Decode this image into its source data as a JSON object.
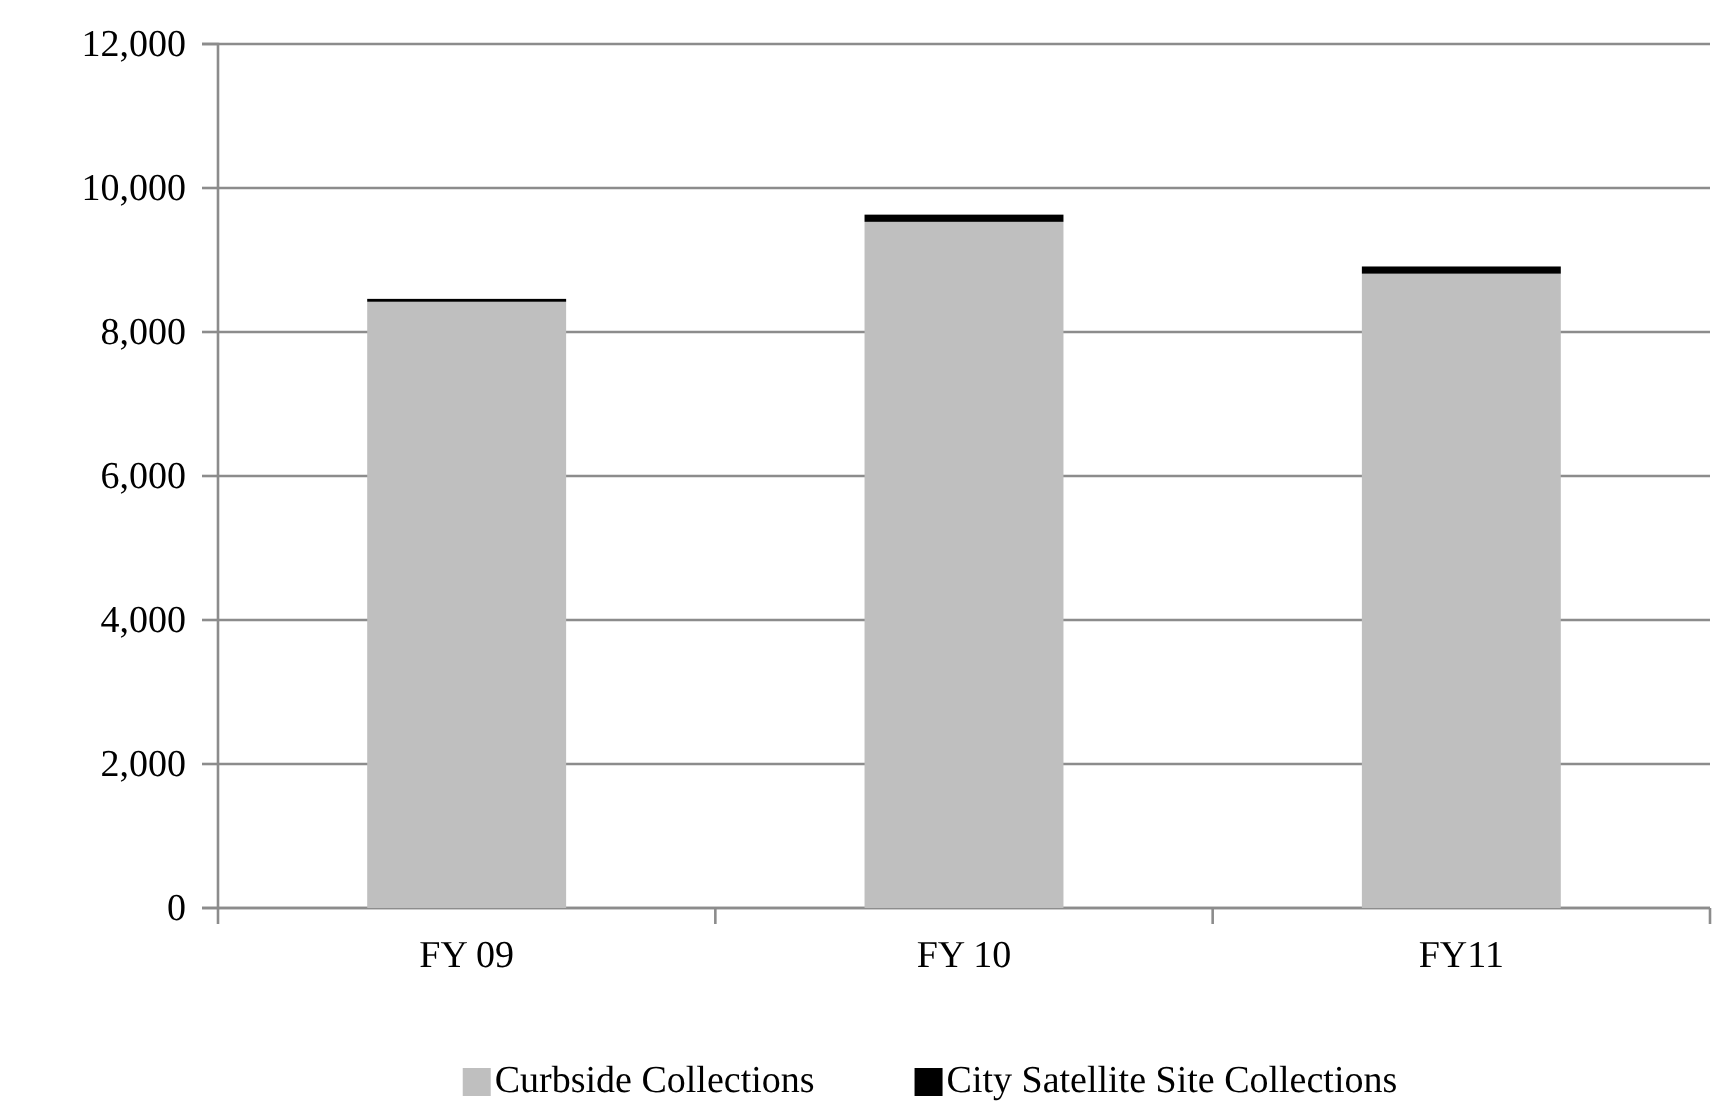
{
  "chart_data": {
    "type": "bar",
    "stacked": true,
    "categories": [
      "FY 09",
      "FY 10",
      "FY11"
    ],
    "series": [
      {
        "name": "Curbside Collections",
        "color": "#bfbfbf",
        "values": [
          8420,
          9530,
          8810
        ]
      },
      {
        "name": "City Satellite Site Collections",
        "color": "#000000",
        "values": [
          40,
          100,
          100
        ]
      }
    ],
    "ylim": [
      0,
      12000
    ],
    "yticks": [
      {
        "value": 0,
        "label": "0"
      },
      {
        "value": 2000,
        "label": "2,000"
      },
      {
        "value": 4000,
        "label": "4,000"
      },
      {
        "value": 6000,
        "label": "6,000"
      },
      {
        "value": 8000,
        "label": "8,000"
      },
      {
        "value": 10000,
        "label": "10,000"
      },
      {
        "value": 12000,
        "label": "12,000"
      }
    ],
    "grid": "y",
    "legend": "bottom"
  }
}
